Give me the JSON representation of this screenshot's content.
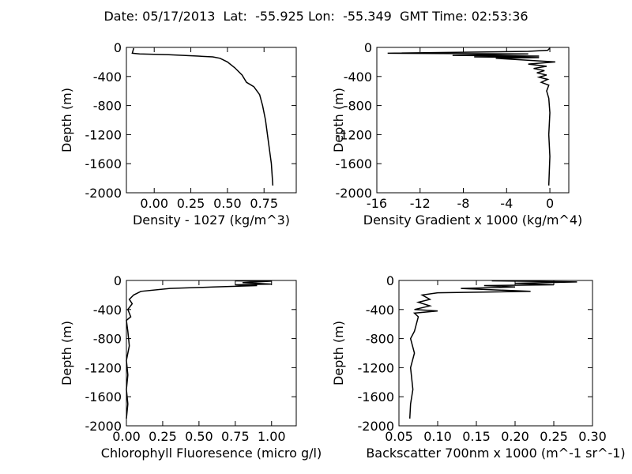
{
  "title": "Date: 05/17/2013  Lat:  -55.925 Lon:  -55.349  GMT Time: 02:53:36",
  "chart_data": [
    {
      "type": "line",
      "xlabel": "Density - 1027 (kg/m^3)",
      "ylabel": "Depth (m)",
      "color": "#000000",
      "xlim": [
        -0.19,
        0.97
      ],
      "ylim": [
        -2000,
        0
      ],
      "xticks": [
        {
          "value": 0,
          "label": "0.00"
        },
        {
          "value": 0.25,
          "label": "0.25"
        },
        {
          "value": 0.5,
          "label": "0.50"
        },
        {
          "value": 0.75,
          "label": "0.75"
        }
      ],
      "yticks": [
        0,
        -400,
        -800,
        -1200,
        -1600,
        -2000
      ],
      "x": [
        -0.14,
        -0.15,
        -0.1,
        0.1,
        0.3,
        0.4,
        0.45,
        0.5,
        0.55,
        0.6,
        0.63,
        0.68,
        0.72,
        0.74,
        0.76,
        0.78,
        0.8,
        0.81
      ],
      "y": [
        -10,
        -80,
        -90,
        -100,
        -120,
        -130,
        -150,
        -200,
        -280,
        -380,
        -480,
        -540,
        -650,
        -800,
        -1000,
        -1300,
        -1600,
        -1900
      ]
    },
    {
      "type": "line",
      "xlabel": "Density Gradient x 1000 (kg/m^4)",
      "ylabel": "Depth (m)",
      "color": "#000000",
      "xlim": [
        -16,
        1.75
      ],
      "ylim": [
        -2000,
        0
      ],
      "xticks": [
        -16,
        -12,
        -8,
        -4,
        0
      ],
      "yticks": [
        0,
        -400,
        -800,
        -1200,
        -1600,
        -2000
      ],
      "x": [
        0,
        -0.2,
        -2,
        -15,
        -2,
        -9,
        -1,
        -7,
        -1,
        -5,
        0.5,
        -2,
        -0.3,
        -1.5,
        -0.5,
        -1.2,
        -0.3,
        -1,
        -0.2,
        -0.8,
        -0.1,
        -0.3,
        -0.1,
        0,
        -0.1,
        0,
        -0.1
      ],
      "y": [
        -10,
        -40,
        -55,
        -80,
        -90,
        -110,
        -120,
        -130,
        -140,
        -150,
        -200,
        -230,
        -260,
        -290,
        -320,
        -350,
        -380,
        -410,
        -440,
        -480,
        -520,
        -600,
        -700,
        -900,
        -1200,
        -1500,
        -1900
      ]
    },
    {
      "type": "line",
      "xlabel": "Chlorophyll Fluoresence (micro g/l)",
      "ylabel": "Depth (m)",
      "color": "#000000",
      "xlim": [
        0,
        1.17
      ],
      "ylim": [
        -2000,
        0
      ],
      "xticks": [
        {
          "value": 0,
          "label": "0.00"
        },
        {
          "value": 0.25,
          "label": "0.25"
        },
        {
          "value": 0.5,
          "label": "0.50"
        },
        {
          "value": 0.75,
          "label": "0.75"
        },
        {
          "value": 1,
          "label": "1.00"
        }
      ],
      "yticks": [
        0,
        -400,
        -800,
        -1200,
        -1600,
        -2000
      ],
      "x": [
        0.75,
        1.0,
        0.8,
        1.0,
        0.75,
        0.9,
        0.6,
        0.3,
        0.1,
        0.05,
        0.02,
        0.04,
        0.01,
        0.03,
        0,
        0.01,
        0.02,
        0,
        0.01,
        0,
        0.01,
        0
      ],
      "y": [
        -5,
        -10,
        -30,
        -50,
        -60,
        -70,
        -90,
        -110,
        -150,
        -200,
        -260,
        -320,
        -400,
        -500,
        -550,
        -700,
        -900,
        -1100,
        -1300,
        -1500,
        -1700,
        -1900
      ]
    },
    {
      "type": "line",
      "xlabel": "Backscatter 700nm x 1000 (m^-1 sr^-1)",
      "ylabel": "Depth (m)",
      "color": "#000000",
      "xlim": [
        0.05,
        0.3
      ],
      "ylim": [
        -2000,
        0
      ],
      "xticks": [
        {
          "value": 0.05,
          "label": "0.05"
        },
        {
          "value": 0.1,
          "label": "0.10"
        },
        {
          "value": 0.15,
          "label": "0.15"
        },
        {
          "value": 0.2,
          "label": "0.20"
        },
        {
          "value": 0.25,
          "label": "0.25"
        },
        {
          "value": 0.3,
          "label": "0.30"
        }
      ],
      "yticks": [
        0,
        -400,
        -800,
        -1200,
        -1600,
        -2000
      ],
      "x": [
        0.17,
        0.28,
        0.2,
        0.25,
        0.16,
        0.2,
        0.13,
        0.22,
        0.1,
        0.08,
        0.09,
        0.075,
        0.09,
        0.07,
        0.1,
        0.07,
        0.075,
        0.07,
        0.065,
        0.07,
        0.065,
        0.068,
        0.065,
        0.064
      ],
      "y": [
        -5,
        -20,
        -40,
        -60,
        -70,
        -90,
        -110,
        -150,
        -170,
        -200,
        -260,
        -300,
        -350,
        -400,
        -420,
        -450,
        -500,
        -700,
        -800,
        -1000,
        -1200,
        -1500,
        -1700,
        -1900
      ]
    }
  ]
}
